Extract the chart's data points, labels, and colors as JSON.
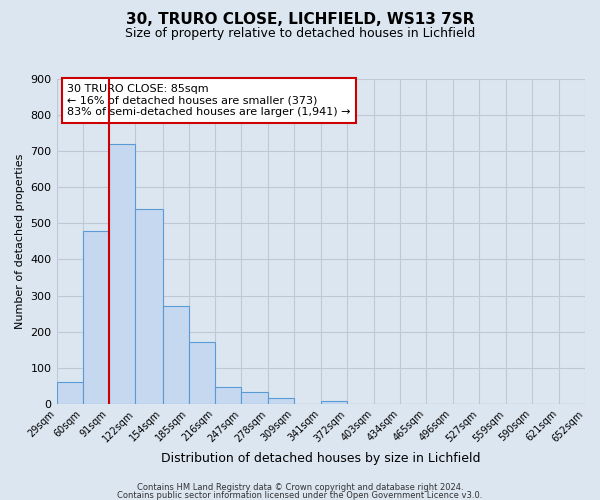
{
  "title": "30, TRURO CLOSE, LICHFIELD, WS13 7SR",
  "subtitle": "Size of property relative to detached houses in Lichfield",
  "xlabel": "Distribution of detached houses by size in Lichfield",
  "ylabel": "Number of detached properties",
  "bin_edges": [
    29,
    60,
    91,
    122,
    154,
    185,
    216,
    247,
    278,
    309,
    341,
    372,
    403,
    434,
    465,
    496,
    527,
    559,
    590,
    621,
    652
  ],
  "bin_labels": [
    "29sqm",
    "60sqm",
    "91sqm",
    "122sqm",
    "154sqm",
    "185sqm",
    "216sqm",
    "247sqm",
    "278sqm",
    "309sqm",
    "341sqm",
    "372sqm",
    "403sqm",
    "434sqm",
    "465sqm",
    "496sqm",
    "527sqm",
    "559sqm",
    "590sqm",
    "621sqm",
    "652sqm"
  ],
  "counts": [
    60,
    480,
    720,
    540,
    270,
    170,
    47,
    34,
    16,
    0,
    7,
    0,
    0,
    0,
    0,
    0,
    0,
    0,
    0,
    0
  ],
  "bar_color": "#c5d8f0",
  "bar_edge_color": "#5b9bd5",
  "red_line_x": 91,
  "annotation_title": "30 TRURO CLOSE: 85sqm",
  "annotation_line1": "← 16% of detached houses are smaller (373)",
  "annotation_line2": "83% of semi-detached houses are larger (1,941) →",
  "annotation_box_color": "#ffffff",
  "annotation_box_edge": "#cc0000",
  "red_line_color": "#cc0000",
  "grid_color": "#c0c8d8",
  "background_color": "#dce6f1",
  "ylim": [
    0,
    900
  ],
  "yticks": [
    0,
    100,
    200,
    300,
    400,
    500,
    600,
    700,
    800,
    900
  ],
  "footer1": "Contains HM Land Registry data © Crown copyright and database right 2024.",
  "footer2": "Contains public sector information licensed under the Open Government Licence v3.0."
}
